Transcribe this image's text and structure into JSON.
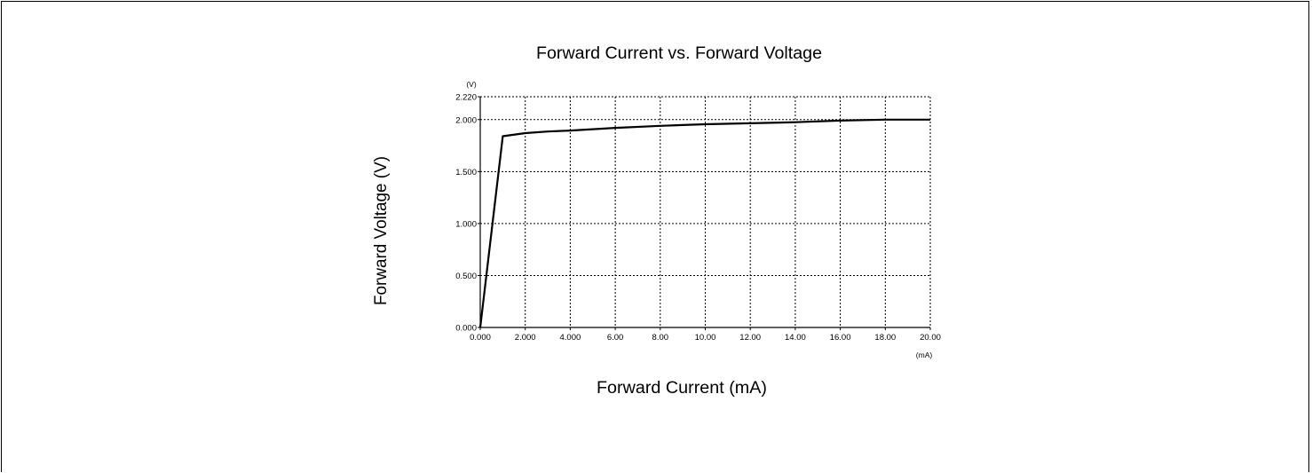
{
  "chart_data": {
    "type": "line",
    "title": "Forward Current vs. Forward Voltage",
    "xlabel": "Forward Current (mA)",
    "ylabel": "Forward Voltage (V)",
    "x_unit": "(mA)",
    "y_unit": "(V)",
    "xlim": [
      0,
      20
    ],
    "ylim": [
      0,
      2.22
    ],
    "x_ticks": [
      0,
      2,
      4,
      6,
      8,
      10,
      12,
      14,
      16,
      18,
      20
    ],
    "x_tick_labels": [
      "0.000",
      "2.000",
      "4.000",
      "6.00",
      "8.00",
      "10.00",
      "12.00",
      "14.00",
      "16.00",
      "18.00",
      "20.00"
    ],
    "y_ticks": [
      0,
      0.5,
      1.0,
      1.5,
      2.0,
      2.22
    ],
    "y_tick_labels": [
      "0.000",
      "0.500",
      "1.000",
      "1.500",
      "2.000",
      "2.220"
    ],
    "grid": true,
    "series": [
      {
        "x": [
          0,
          1,
          2,
          3,
          4,
          6,
          8,
          10,
          12,
          14,
          16,
          18,
          20
        ],
        "y": [
          0,
          1.84,
          1.87,
          1.885,
          1.895,
          1.92,
          1.94,
          1.955,
          1.965,
          1.975,
          1.99,
          2.0,
          2.0
        ],
        "color": "#000000"
      }
    ]
  }
}
